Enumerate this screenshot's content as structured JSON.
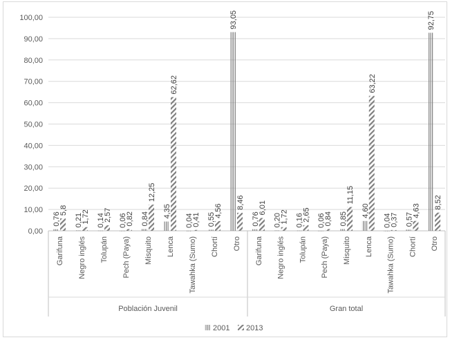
{
  "chart_data": {
    "type": "bar",
    "groups": [
      {
        "name": "Población Juvenil",
        "categories": [
          "Garifuna",
          "Negro inglés",
          "Tolupán",
          "Pech (Paya)",
          "Misquito",
          "Lenca",
          "Tawahka (Sumo)",
          "Chortí",
          "Otro"
        ],
        "series": [
          {
            "name": "2001",
            "values": [
              0.76,
              0.21,
              0.14,
              0.06,
              0.84,
              4.35,
              0.04,
              0.55,
              93.05
            ],
            "labels": [
              "0,76",
              "0,21",
              "0,14",
              "0,06",
              "0,84",
              "4,35",
              "0,04",
              "0,55",
              "93,05"
            ]
          },
          {
            "name": "2013",
            "values": [
              5.8,
              1.72,
              2.57,
              0.82,
              12.25,
              62.62,
              0.41,
              4.56,
              8.46
            ],
            "labels": [
              "5,8",
              "1,72",
              "2,57",
              "0,82",
              "12,25",
              "62,62",
              "0,41",
              "4,56",
              "8,46"
            ]
          }
        ]
      },
      {
        "name": "Gran total",
        "categories": [
          "Garifuna",
          "Negro inglés",
          "Tolupán",
          "Pech (Paya)",
          "Misquito",
          "Lenca",
          "Tawahka (Sumo)",
          "Chortí",
          "Otro"
        ],
        "series": [
          {
            "name": "2001",
            "values": [
              0.76,
              0.2,
              0.16,
              0.06,
              0.85,
              4.6,
              0.04,
              0.57,
              92.75
            ],
            "labels": [
              "0,76",
              "0,20",
              "0,16",
              "0,06",
              "0,85",
              "4,60",
              "0,04",
              "0,57",
              "92,75"
            ]
          },
          {
            "name": "2013",
            "values": [
              6.01,
              1.72,
              2.65,
              0.84,
              11.15,
              63.22,
              0.37,
              4.63,
              8.52
            ],
            "labels": [
              "6,01",
              "1,72",
              "2,65",
              "0,84",
              "11,15",
              "63,22",
              "0,37",
              "4,63",
              "8,52"
            ]
          }
        ]
      }
    ],
    "y_ticks": [
      "0,00",
      "10,00",
      "20,00",
      "30,00",
      "40,00",
      "50,00",
      "60,00",
      "70,00",
      "80,00",
      "90,00",
      "100,00"
    ],
    "ylim": [
      0,
      100
    ],
    "grid": true,
    "legend": {
      "position": "bottom",
      "items": [
        "2001",
        "2013"
      ]
    },
    "series_style": {
      "2001": "vertical-stripes",
      "2013": "diagonal-hatch"
    },
    "colors": {
      "bar_fill": "#7f7f7f",
      "grid": "#d9d9d9",
      "text": "#595959"
    }
  }
}
